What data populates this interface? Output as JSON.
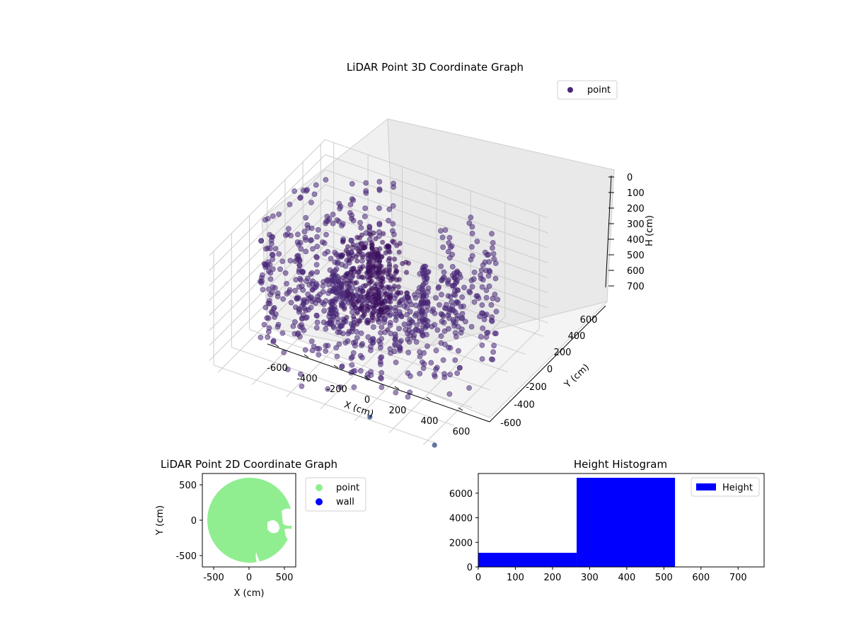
{
  "chart_data": [
    {
      "type": "scatter",
      "title": "LiDAR Point 3D Coordinate Graph",
      "xlabel": "X (cm)",
      "ylabel": "Y (cm)",
      "zlabel": "H (cm)",
      "x_ticks": [
        "-600",
        "-400",
        "-200",
        "0",
        "200",
        "400",
        "600"
      ],
      "y_ticks": [
        "-600",
        "-400",
        "-200",
        "0",
        "200",
        "400",
        "600"
      ],
      "z_ticks": [
        "0",
        "100",
        "200",
        "300",
        "400",
        "500",
        "600",
        "700"
      ],
      "xlim": [
        -650,
        650
      ],
      "ylim": [
        -650,
        650
      ],
      "zlim": [
        0,
        760
      ],
      "z_inverted": true,
      "grid": true,
      "legend_placement": "top-right",
      "series": [
        {
          "name": "point",
          "color": "#482878",
          "description_points": [
            {
              "r": 600,
              "angle_start_deg": 20,
              "angle_end_deg": 340,
              "h_min": 0,
              "h_max": 700
            },
            {
              "r": 420,
              "angle_start_deg": 20,
              "angle_end_deg": 340,
              "h_min": 100,
              "h_max": 650
            },
            {
              "r": 250,
              "angle_start_deg": 40,
              "angle_end_deg": 320,
              "h_min": 200,
              "h_max": 600
            }
          ]
        }
      ]
    },
    {
      "type": "scatter",
      "title": "LiDAR Point 2D Coordinate Graph",
      "xlabel": "X (cm)",
      "ylabel": "Y (cm)",
      "x_ticks": [
        "-500",
        "0",
        "500"
      ],
      "y_ticks": [
        "500",
        "0",
        "-500"
      ],
      "xlim": [
        -660,
        660
      ],
      "ylim": [
        -660,
        660
      ],
      "legend_placement": "outside-right",
      "series": [
        {
          "name": "point",
          "color": "#90ee90",
          "description": "filled disc of radius ~600 cm centered at origin"
        },
        {
          "name": "wall",
          "color": "#0000ff",
          "x": [],
          "y": []
        }
      ]
    },
    {
      "type": "bar",
      "title": "Height Histogram",
      "xlabel": "",
      "ylabel": "",
      "x_ticks": [
        "0",
        "100",
        "200",
        "300",
        "400",
        "500",
        "600",
        "700"
      ],
      "y_ticks": [
        "0",
        "2000",
        "4000",
        "6000"
      ],
      "xlim": [
        0,
        770
      ],
      "ylim": [
        0,
        7600
      ],
      "legend_placement": "top-right",
      "series": [
        {
          "name": "Height",
          "color": "#0000ff",
          "bins": [
            {
              "start": 0,
              "end": 265,
              "count": 1150
            },
            {
              "start": 265,
              "end": 530,
              "count": 7250
            }
          ]
        }
      ]
    }
  ]
}
